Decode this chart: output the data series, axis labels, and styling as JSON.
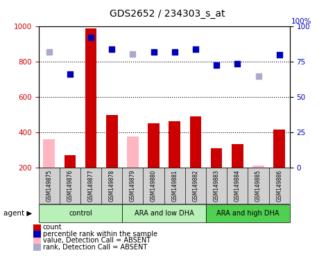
{
  "title": "GDS2652 / 234303_s_at",
  "samples": [
    "GSM149875",
    "GSM149876",
    "GSM149877",
    "GSM149878",
    "GSM149879",
    "GSM149880",
    "GSM149881",
    "GSM149882",
    "GSM149883",
    "GSM149884",
    "GSM149885",
    "GSM149886"
  ],
  "group_labels": [
    "control",
    "ARA and low DHA",
    "ARA and high DHA"
  ],
  "group_starts": [
    0,
    4,
    8
  ],
  "group_ends": [
    4,
    8,
    12
  ],
  "group_colors": [
    "#B8F0B8",
    "#B8F0B8",
    "#50D050"
  ],
  "red_bars": [
    null,
    270,
    990,
    500,
    null,
    450,
    465,
    490,
    310,
    335,
    null,
    415
  ],
  "pink_bars": [
    360,
    null,
    null,
    null,
    375,
    null,
    null,
    null,
    null,
    null,
    210,
    null
  ],
  "blue_squares": [
    null,
    730,
    940,
    870,
    null,
    855,
    855,
    870,
    780,
    790,
    null,
    840
  ],
  "lilac_squares": [
    82,
    null,
    null,
    null,
    80.5,
    null,
    null,
    null,
    null,
    null,
    65,
    null
  ],
  "ylim_left": [
    200,
    1000
  ],
  "ylim_right": [
    0,
    100
  ],
  "yticks_left": [
    200,
    400,
    600,
    800,
    1000
  ],
  "yticks_right": [
    0,
    25,
    50,
    75,
    100
  ],
  "hlines": [
    400,
    600,
    800
  ],
  "red_color": "#CC0000",
  "pink_color": "#FFB6C1",
  "blue_color": "#0000BB",
  "lilac_color": "#AAAACC",
  "gray_color": "#D0D0D0",
  "legend_labels": [
    "count",
    "percentile rank within the sample",
    "value, Detection Call = ABSENT",
    "rank, Detection Call = ABSENT"
  ],
  "legend_colors": [
    "#CC0000",
    "#0000BB",
    "#FFB6C1",
    "#AAAACC"
  ]
}
